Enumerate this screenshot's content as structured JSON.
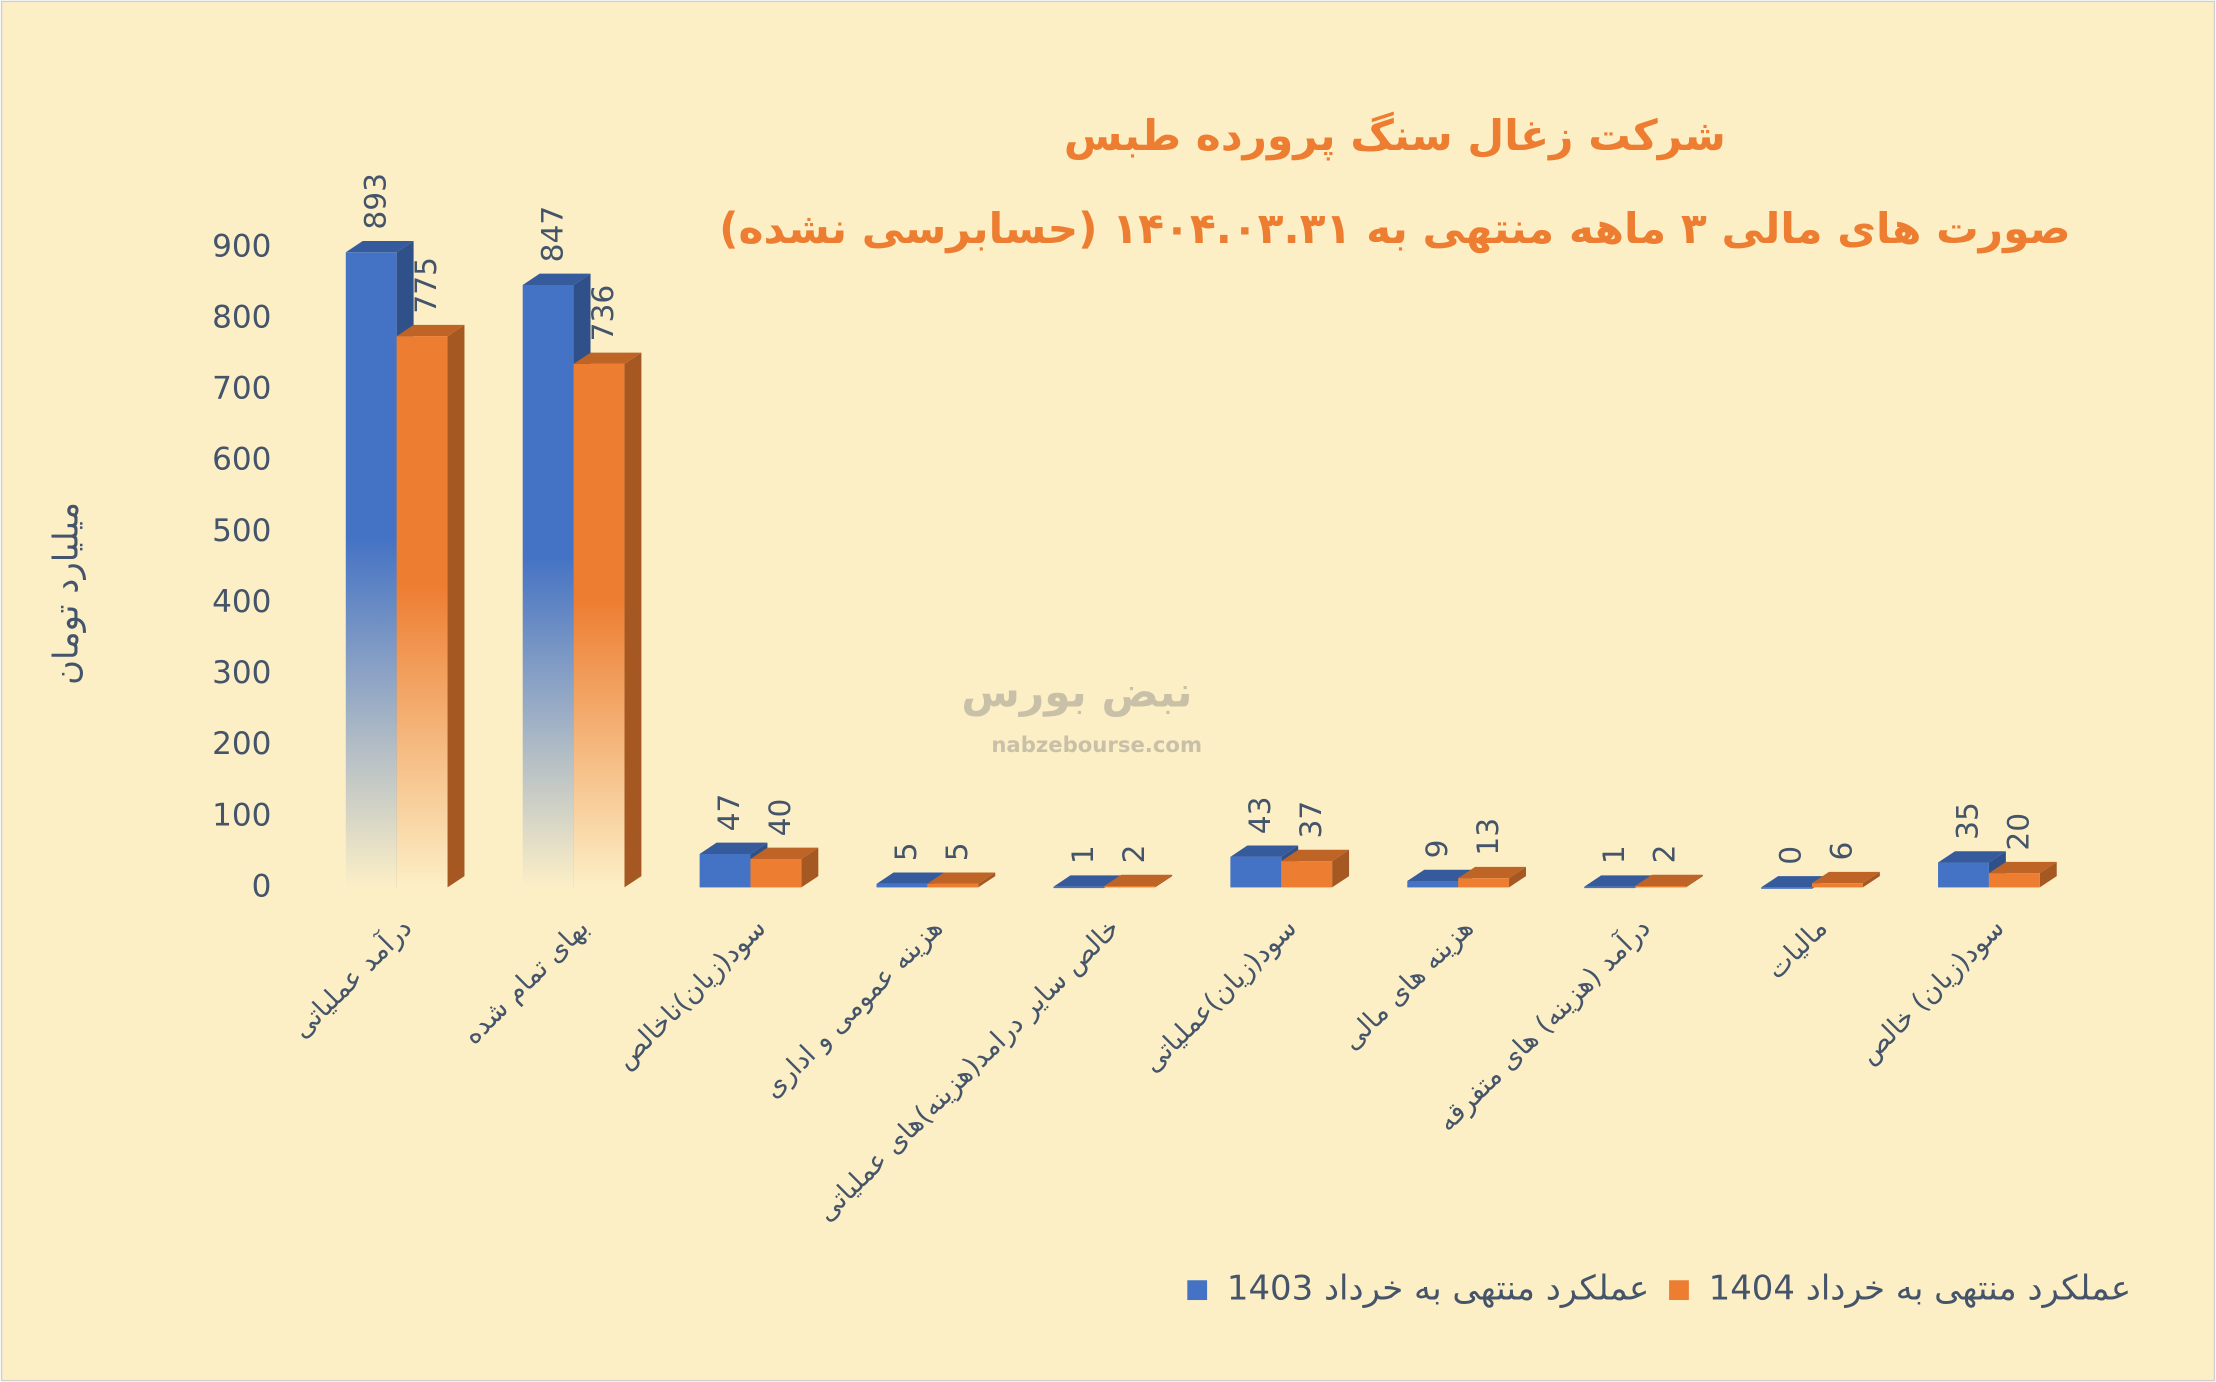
{
  "chart_data": {
    "type": "bar",
    "title": "شرکت زغال سنگ پرورده طبس",
    "subtitle": "صورت های مالی ۳ ماهه منتهی به ۱۴۰۴.۰۳.۳۱ (حسابرسی نشده)",
    "y_label": "میلیارد تومان",
    "watermark": [
      "نبض بورس",
      "nabzebourse.com"
    ],
    "categories": [
      "درآمد عملیاتی",
      "بهای تمام شده",
      "سود(زیان)ناخالص",
      "هزینه عمومی و اداری",
      "خالص سایر درامد(هزینه)های عملیاتی",
      "سود(زیان)عملیاتی",
      "هزینه های مالی",
      "درآمد (هزینه) های متفرقه",
      "مالیات",
      "سود(زیان) خالص"
    ],
    "series": [
      {
        "name": "عملکرد منتهی به خرداد 1403",
        "color": "#4472c4",
        "values": [
          893,
          847,
          47,
          5,
          1,
          43,
          9,
          1,
          0,
          35
        ]
      },
      {
        "name": "عملکرد منتهی به خرداد 1404",
        "color": "#ed7d31",
        "values": [
          775,
          736,
          40,
          5,
          2,
          37,
          13,
          2,
          6,
          20
        ]
      }
    ],
    "ylim": [
      0,
      900
    ],
    "yticks": [
      0,
      100,
      200,
      300,
      400,
      500,
      600,
      700,
      800,
      900
    ],
    "grid": false,
    "legend": "bottom-right"
  }
}
